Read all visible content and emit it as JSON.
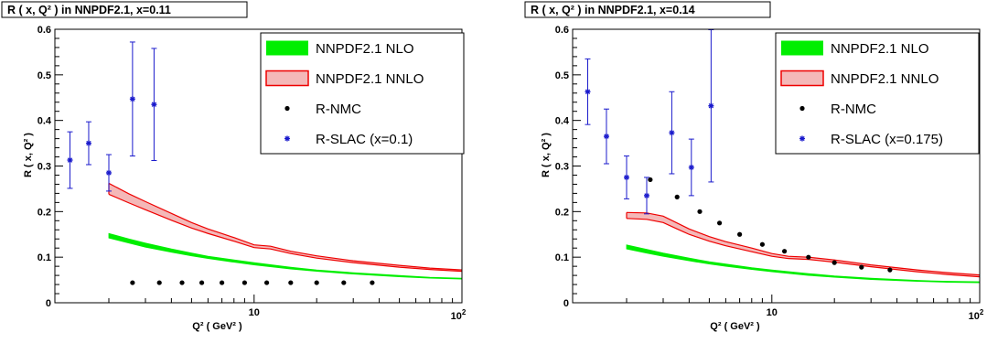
{
  "colors": {
    "nlo": "#00ee00",
    "nnlo_fill": "#f4b8b8",
    "nnlo_line": "#ee0000",
    "nmc": "#000000",
    "slac": "#1a1acc",
    "axis": "#000000"
  },
  "chart_data": [
    {
      "type": "line",
      "title": "R ( x, Q² ) in NNPDF2.1, x=0.11",
      "xlabel": "Q² ( GeV² )",
      "ylabel": "R ( x, Q² )",
      "xscale": "log",
      "xlim": [
        1.1,
        100
      ],
      "ylim": [
        0,
        0.6
      ],
      "xticks": [
        {
          "value": 10,
          "label": "10"
        },
        {
          "value": 100,
          "label": "10²"
        }
      ],
      "yticks": [
        0,
        0.1,
        0.2,
        0.3,
        0.4,
        0.5,
        0.6
      ],
      "ytick_labels": [
        "0",
        "0.1",
        "0.2",
        "0.3",
        "0.4",
        "0.5",
        "0.6"
      ],
      "legend_position": "top-right",
      "legend": [
        "NNPDF2.1 NLO",
        "NNPDF2.1 NNLO",
        "R-NMC",
        "R-SLAC (x=0.1)"
      ],
      "series": [
        {
          "name": "NNPDF2.1 NLO",
          "kind": "band",
          "x": [
            2,
            2.5,
            3,
            4,
            5,
            6,
            8,
            10,
            15,
            20,
            30,
            50,
            70,
            100
          ],
          "low": [
            0.142,
            0.131,
            0.122,
            0.111,
            0.103,
            0.097,
            0.089,
            0.083,
            0.074,
            0.069,
            0.063,
            0.057,
            0.054,
            0.052
          ],
          "high": [
            0.152,
            0.14,
            0.131,
            0.118,
            0.109,
            0.102,
            0.094,
            0.088,
            0.078,
            0.072,
            0.066,
            0.06,
            0.056,
            0.054
          ]
        },
        {
          "name": "NNPDF2.1 NNLO",
          "kind": "band",
          "x": [
            2,
            2.5,
            3,
            4,
            5,
            6,
            8,
            10,
            12,
            15,
            20,
            30,
            50,
            70,
            100
          ],
          "low": [
            0.238,
            0.219,
            0.204,
            0.181,
            0.164,
            0.152,
            0.135,
            0.121,
            0.118,
            0.108,
            0.098,
            0.088,
            0.078,
            0.073,
            0.069
          ],
          "high": [
            0.262,
            0.239,
            0.222,
            0.196,
            0.176,
            0.162,
            0.143,
            0.127,
            0.124,
            0.113,
            0.103,
            0.092,
            0.082,
            0.076,
            0.072
          ]
        },
        {
          "name": "R-NMC",
          "kind": "points",
          "x": [
            2.6,
            3.5,
            4.5,
            5.6,
            7,
            9,
            11.5,
            15,
            20,
            27,
            37
          ],
          "y": [
            0.044,
            0.044,
            0.044,
            0.044,
            0.044,
            0.044,
            0.044,
            0.044,
            0.044,
            0.044,
            0.044
          ]
        },
        {
          "name": "R-SLAC (x=0.1)",
          "kind": "errorpoints",
          "x": [
            1.3,
            1.6,
            2.0,
            2.6,
            3.3
          ],
          "y": [
            0.313,
            0.35,
            0.285,
            0.447,
            0.435
          ],
          "err": [
            0.062,
            0.047,
            0.04,
            0.125,
            0.123
          ]
        }
      ]
    },
    {
      "type": "line",
      "title": "R ( x, Q² ) in NNPDF2.1, x=0.14",
      "xlabel": "Q² ( GeV² )",
      "ylabel": "R ( x, Q² )",
      "xscale": "log",
      "xlim": [
        1.1,
        100
      ],
      "ylim": [
        0,
        0.6
      ],
      "xticks": [
        {
          "value": 10,
          "label": "10"
        },
        {
          "value": 100,
          "label": "10²"
        }
      ],
      "yticks": [
        0,
        0.1,
        0.2,
        0.3,
        0.4,
        0.5,
        0.6
      ],
      "ytick_labels": [
        "0",
        "0.1",
        "0.2",
        "0.3",
        "0.4",
        "0.5",
        "0.6"
      ],
      "legend_position": "top-right",
      "legend": [
        "NNPDF2.1 NLO",
        "NNPDF2.1 NNLO",
        "R-NMC",
        "R-SLAC (x=0.175)"
      ],
      "series": [
        {
          "name": "NNPDF2.1 NLO",
          "kind": "band",
          "x": [
            2,
            2.5,
            3,
            4,
            5,
            6,
            8,
            10,
            15,
            20,
            30,
            50,
            70,
            100
          ],
          "low": [
            0.118,
            0.109,
            0.102,
            0.092,
            0.085,
            0.08,
            0.073,
            0.068,
            0.06,
            0.056,
            0.051,
            0.047,
            0.045,
            0.044
          ],
          "high": [
            0.127,
            0.117,
            0.109,
            0.098,
            0.09,
            0.085,
            0.077,
            0.072,
            0.064,
            0.059,
            0.054,
            0.049,
            0.047,
            0.046
          ]
        },
        {
          "name": "NNPDF2.1 NNLO",
          "kind": "band",
          "x": [
            2,
            2.5,
            3,
            3.5,
            4,
            5,
            6,
            8,
            10,
            12,
            15,
            20,
            30,
            50,
            70,
            100
          ],
          "low": [
            0.185,
            0.183,
            0.176,
            0.162,
            0.15,
            0.135,
            0.125,
            0.112,
            0.102,
            0.097,
            0.095,
            0.089,
            0.079,
            0.068,
            0.062,
            0.057
          ],
          "high": [
            0.198,
            0.197,
            0.19,
            0.175,
            0.162,
            0.145,
            0.134,
            0.12,
            0.108,
            0.102,
            0.1,
            0.094,
            0.083,
            0.072,
            0.066,
            0.061
          ]
        },
        {
          "name": "R-NMC",
          "kind": "points",
          "x": [
            2.6,
            3.5,
            4.5,
            5.6,
            7,
            9,
            11.5,
            15,
            20,
            27,
            37
          ],
          "y": [
            0.27,
            0.232,
            0.2,
            0.175,
            0.15,
            0.128,
            0.113,
            0.1,
            0.088,
            0.078,
            0.072
          ]
        },
        {
          "name": "R-SLAC (x=0.175)",
          "kind": "errorpoints",
          "x": [
            1.3,
            1.6,
            2.0,
            2.5,
            3.3,
            4.1,
            5.1
          ],
          "y": [
            0.463,
            0.365,
            0.275,
            0.235,
            0.373,
            0.297,
            0.432
          ],
          "err": [
            0.072,
            0.06,
            0.047,
            0.04,
            0.09,
            0.062,
            0.167
          ]
        }
      ]
    }
  ]
}
